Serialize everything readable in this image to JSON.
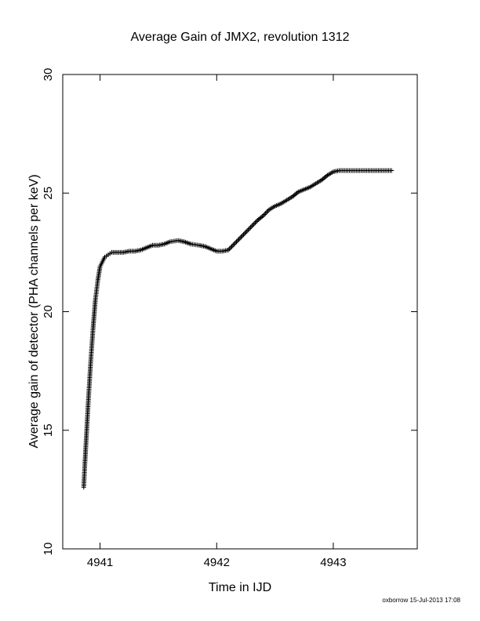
{
  "chart_data": {
    "type": "scatter",
    "title": "Average Gain of JMX2, revolution 1312",
    "xlabel": "Time in IJD",
    "ylabel": "Average gain of detector (PHA channels per keV)",
    "xlim": [
      4940.68,
      4943.72
    ],
    "ylim": [
      10,
      30
    ],
    "xticks": [
      4941,
      4942,
      4943
    ],
    "yticks": [
      10,
      15,
      20,
      25,
      30
    ],
    "xtick_labels": [
      "4941",
      "4942",
      "4943"
    ],
    "ytick_labels": [
      "10",
      "15",
      "20",
      "25",
      "30"
    ],
    "grid": false,
    "legend": "none",
    "marker": "plus",
    "color": "#000000",
    "series": [
      {
        "x": [
          4940.86,
          4940.87,
          4940.88,
          4940.89,
          4940.9,
          4940.91,
          4940.92,
          4940.93,
          4940.94,
          4940.95,
          4940.96,
          4940.97,
          4940.98,
          4940.99,
          4941.0,
          4941.02,
          4941.04,
          4941.07,
          4941.1,
          4941.15,
          4941.2,
          4941.25,
          4941.3,
          4941.35,
          4941.4,
          4941.45,
          4941.5,
          4941.55,
          4941.6,
          4941.67,
          4941.72,
          4941.78,
          4941.85,
          4941.9,
          4941.95,
          4942.0,
          4942.05,
          4942.1,
          4942.15,
          4942.2,
          4942.25,
          4942.3,
          4942.35,
          4942.4,
          4942.45,
          4942.5,
          4942.55,
          4942.6,
          4942.65,
          4942.7,
          4942.75,
          4942.8,
          4942.85,
          4942.9,
          4942.95,
          4943.0,
          4943.05,
          4943.1,
          4943.15,
          4943.2,
          4943.25,
          4943.3,
          4943.35,
          4943.4,
          4943.45,
          4943.5
        ],
        "y": [
          12.6,
          13.6,
          14.5,
          15.4,
          16.3,
          17.1,
          17.9,
          18.6,
          19.3,
          19.9,
          20.5,
          20.9,
          21.3,
          21.6,
          21.9,
          22.1,
          22.3,
          22.4,
          22.5,
          22.5,
          22.5,
          22.55,
          22.55,
          22.6,
          22.7,
          22.8,
          22.8,
          22.85,
          22.95,
          23.0,
          22.95,
          22.85,
          22.8,
          22.75,
          22.65,
          22.55,
          22.55,
          22.6,
          22.85,
          23.1,
          23.35,
          23.6,
          23.85,
          24.05,
          24.3,
          24.45,
          24.55,
          24.7,
          24.85,
          25.05,
          25.15,
          25.25,
          25.4,
          25.55,
          25.75,
          25.9,
          25.95,
          25.95,
          25.95,
          25.95,
          25.95,
          25.95,
          25.95,
          25.95,
          25.95,
          25.95
        ]
      }
    ]
  },
  "footer": {
    "note": "oxborrow 15-Jul-2013 17:08"
  }
}
